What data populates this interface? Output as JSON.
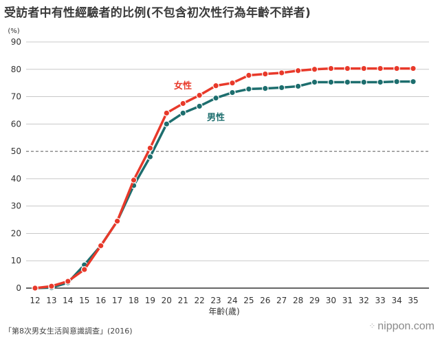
{
  "page": {
    "title": "受訪者中有性經驗者的比例(不包含初次性行為年齡不詳者)",
    "source": "「第8次男女生活與意識調查」(2016)",
    "brand": "nippon.com",
    "brand_mark": "⁘"
  },
  "chart_data": {
    "type": "line",
    "title": "受訪者中有性經驗者的比例(不包含初次性行為年齡不詳者)",
    "xlabel": "年齡(歲)",
    "ylabel": "(%)",
    "x": [
      12,
      13,
      14,
      15,
      16,
      17,
      18,
      19,
      20,
      21,
      22,
      23,
      24,
      25,
      26,
      27,
      28,
      29,
      30,
      31,
      32,
      33,
      34,
      35
    ],
    "ylim": [
      0,
      90
    ],
    "yticks": [
      0,
      10,
      20,
      30,
      40,
      50,
      60,
      70,
      80,
      90
    ],
    "reference_line": 50,
    "grid": true,
    "series": [
      {
        "name": "女性",
        "color": "#e8392a",
        "values": [
          0,
          0.7,
          2.5,
          6.8,
          15.5,
          24.5,
          39.5,
          51.2,
          64.0,
          67.5,
          70.5,
          74.0,
          75.0,
          77.8,
          78.3,
          78.7,
          79.5,
          80.0,
          80.3,
          80.3,
          80.3,
          80.3,
          80.3,
          80.3
        ]
      },
      {
        "name": "男性",
        "color": "#1d6e6e",
        "values": [
          0,
          0.2,
          2.0,
          8.5,
          15.5,
          24.5,
          37.5,
          48.0,
          60.0,
          64.0,
          66.5,
          69.5,
          71.5,
          72.8,
          73.0,
          73.3,
          73.8,
          75.3,
          75.3,
          75.3,
          75.3,
          75.3,
          75.5,
          75.5
        ]
      }
    ]
  }
}
